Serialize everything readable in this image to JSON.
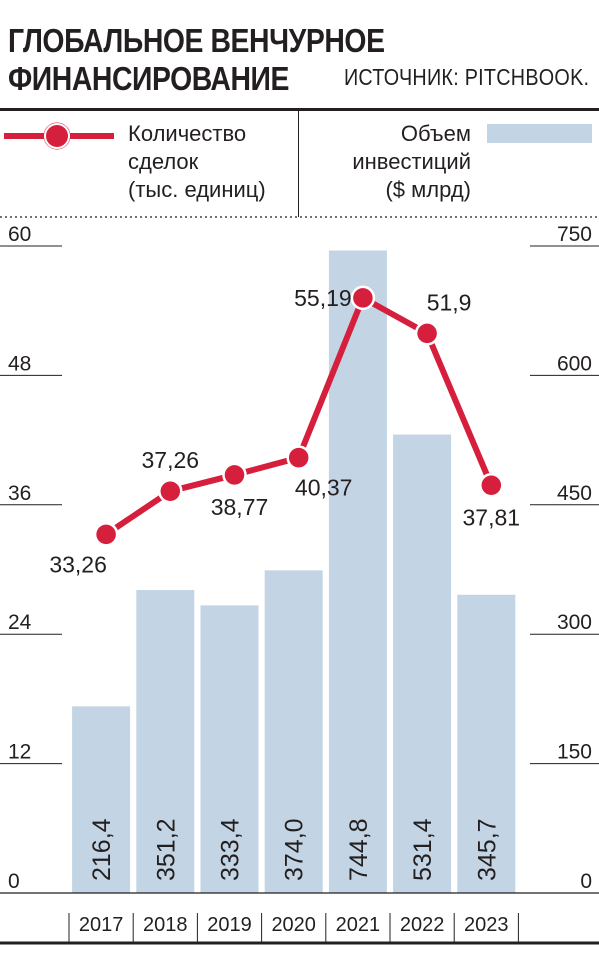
{
  "header": {
    "title_line1": "ГЛОБАЛЬНОЕ ВЕНЧУРНОЕ",
    "title_line2": "ФИНАНСИРОВАНИЕ",
    "source": "ИСТОЧНИК: PITCHBOOK."
  },
  "legend": {
    "line_label": [
      "Количество",
      "сделок",
      "(тыс. единиц)"
    ],
    "bar_label": [
      "Объем",
      "инвестиций",
      "($ млрд)"
    ]
  },
  "colors": {
    "line": "#d51f3c",
    "bar": "#c3d5e4",
    "text": "#231f20"
  },
  "chart_data": {
    "type": "bar+line",
    "categories": [
      "2017",
      "2018",
      "2019",
      "2020",
      "2021",
      "2022",
      "2023"
    ],
    "series": [
      {
        "name": "Объем инвестиций ($ млрд)",
        "type": "bar",
        "axis": "right",
        "values": [
          216.4,
          351.2,
          333.4,
          374.0,
          744.8,
          531.4,
          345.7
        ],
        "labels": [
          "216,4",
          "351,2",
          "333,4",
          "374,0",
          "744,8",
          "531,4",
          "345,7"
        ]
      },
      {
        "name": "Количество сделок (тыс. единиц)",
        "type": "line",
        "axis": "left",
        "values": [
          33.26,
          37.26,
          38.77,
          40.37,
          55.19,
          51.9,
          37.81
        ],
        "labels": [
          "33,26",
          "37,26",
          "38,77",
          "40,37",
          "55,19",
          "51,9",
          "37,81"
        ]
      }
    ],
    "y_left": {
      "min": 0,
      "max": 60,
      "ticks": [
        "0",
        "12",
        "24",
        "36",
        "48",
        "60"
      ]
    },
    "y_right": {
      "min": 0,
      "max": 750,
      "ticks": [
        "0",
        "150",
        "300",
        "450",
        "600",
        "750"
      ]
    },
    "grid": true,
    "legend_position": "top"
  }
}
